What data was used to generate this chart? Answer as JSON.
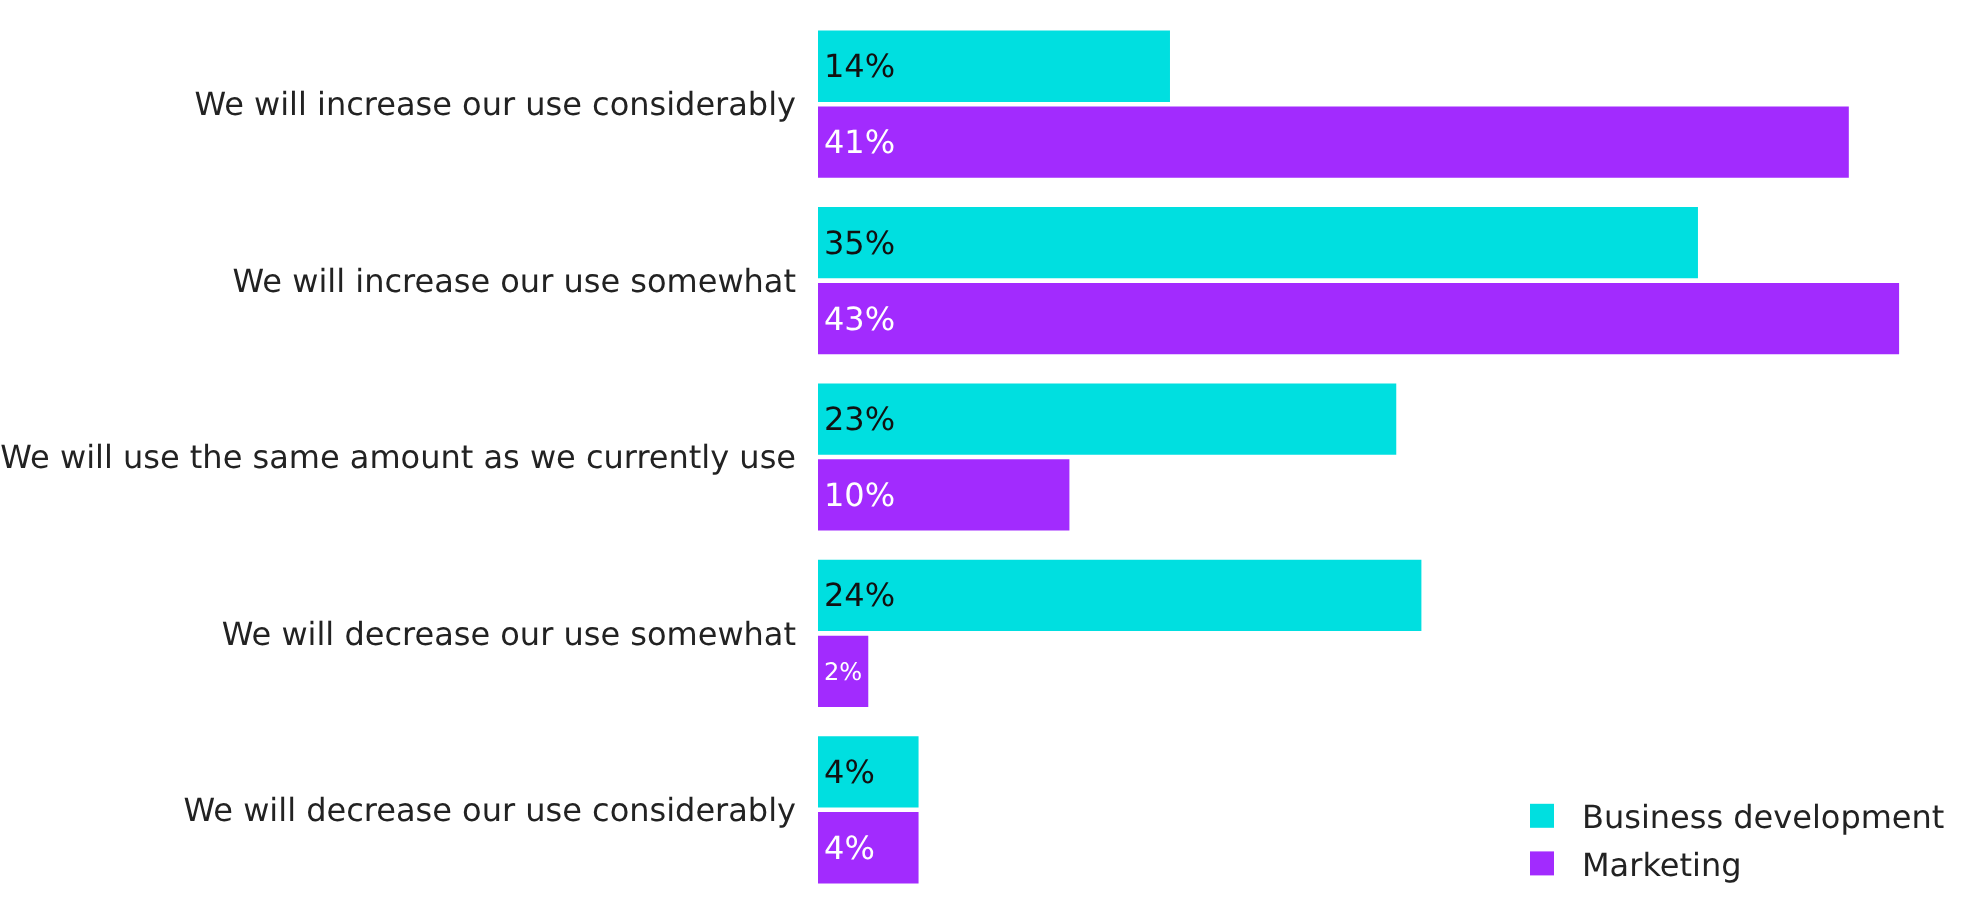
{
  "chart_data": {
    "type": "bar",
    "orientation": "horizontal",
    "categories": [
      "We will increase our use considerably",
      "We will increase our use somewhat",
      "We will use the same amount as we currently use",
      "We will decrease our use somewhat",
      "We will decrease our use considerably"
    ],
    "series": [
      {
        "name": "Business development",
        "color": "#00dfe0",
        "values": [
          14,
          35,
          23,
          24,
          4
        ],
        "value_labels": [
          "14%",
          "35%",
          "23%",
          "24%",
          "4%"
        ]
      },
      {
        "name": "Marketing",
        "color": "#a22bfe",
        "values": [
          41,
          43,
          10,
          2,
          4
        ],
        "value_labels": [
          "41%",
          "43%",
          "10%",
          "2%",
          "4%"
        ]
      }
    ],
    "tick_labels": "y",
    "legend": "bottom right"
  }
}
